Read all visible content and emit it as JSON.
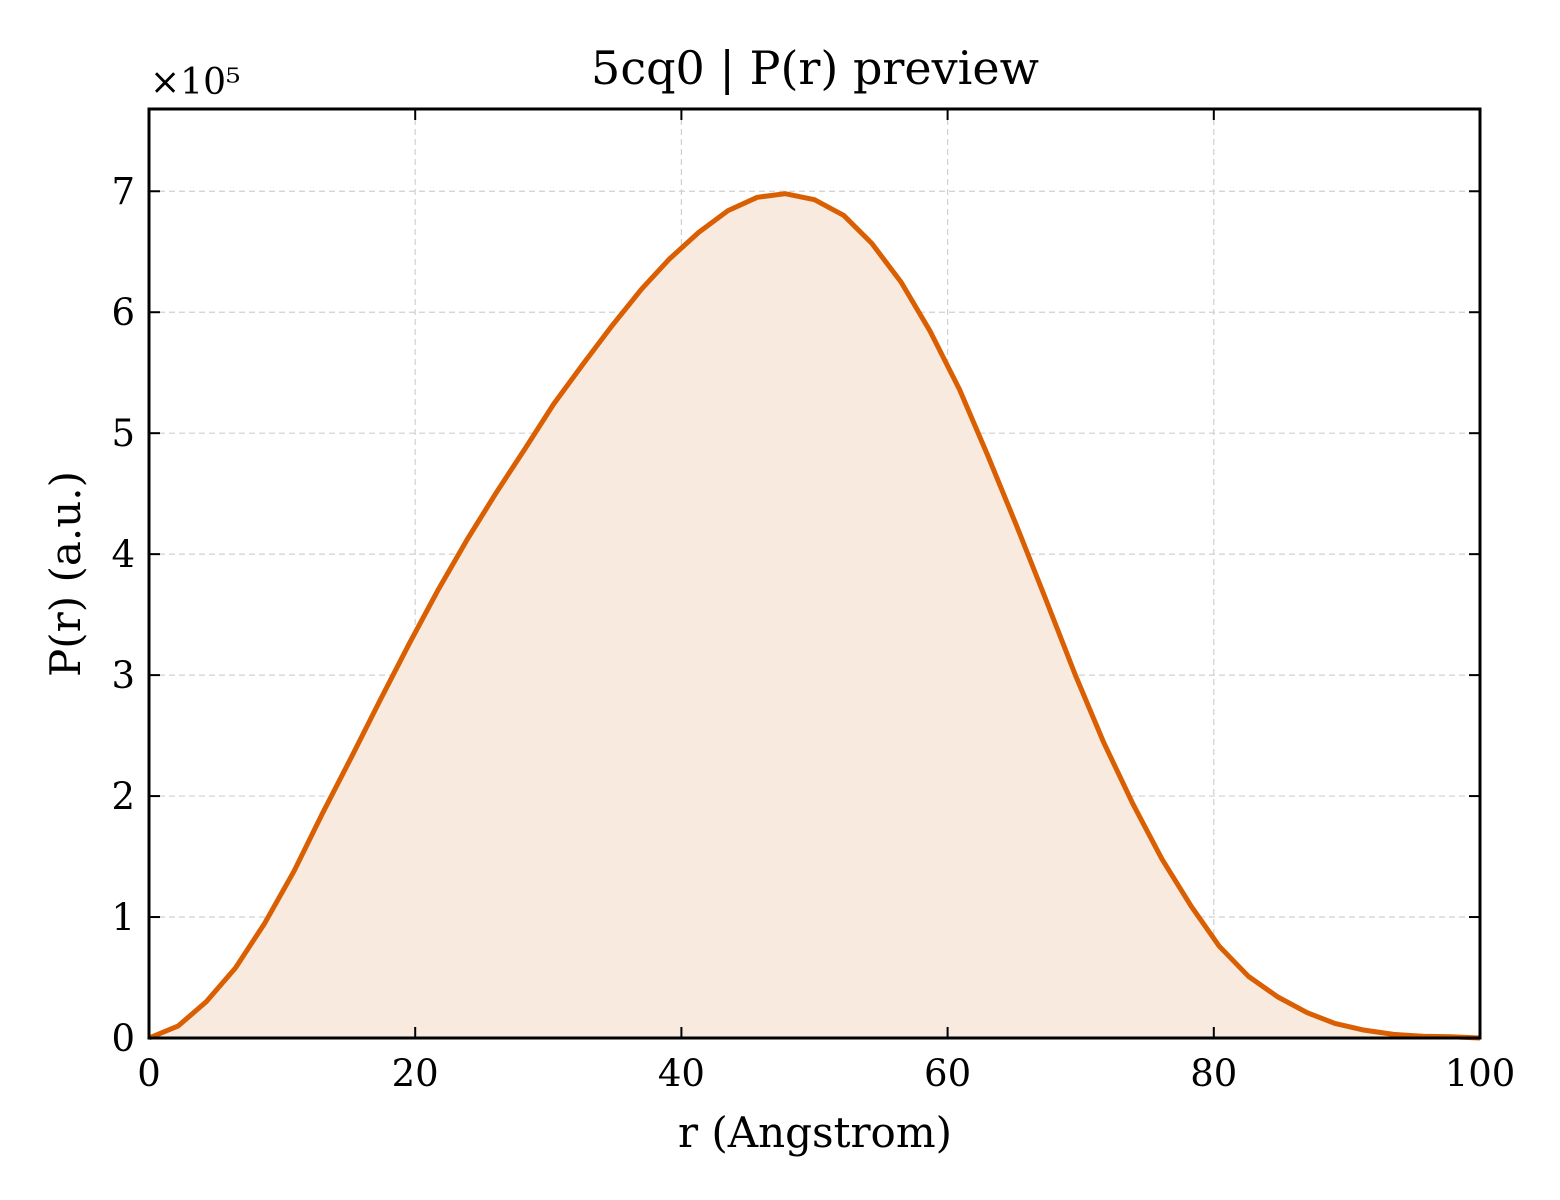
{
  "chart_data": {
    "type": "area",
    "title": "5cq0 | P(r) preview",
    "xlabel": "r (Angstrom)",
    "ylabel": "P(r) (a.u.)",
    "y_offset_label": "×10⁵",
    "y_scale_factor": 100000,
    "xlim": [
      0,
      100
    ],
    "ylim": [
      0,
      768000
    ],
    "x_ticks": [
      0,
      20,
      40,
      60,
      80,
      100
    ],
    "x_tick_labels": [
      "0",
      "20",
      "40",
      "60",
      "80",
      "100"
    ],
    "y_ticks": [
      0,
      100000,
      200000,
      300000,
      400000,
      500000,
      600000,
      700000
    ],
    "y_tick_labels": [
      "0",
      "1",
      "2",
      "3",
      "4",
      "5",
      "6",
      "7"
    ],
    "grid": true,
    "line_color": "#d95f02",
    "fill_color": "#f8eadf",
    "series": [
      {
        "x": [
          0,
          2.2,
          4.3,
          6.5,
          8.7,
          10.9,
          13.0,
          15.2,
          17.4,
          19.6,
          21.7,
          23.9,
          26.1,
          28.3,
          30.4,
          32.6,
          34.8,
          37.0,
          39.1,
          41.3,
          43.5,
          45.7,
          47.8,
          50.0,
          52.2,
          54.3,
          56.5,
          58.7,
          60.9,
          63.0,
          65.2,
          67.4,
          69.6,
          71.7,
          73.9,
          76.1,
          78.3,
          80.4,
          82.6,
          84.8,
          87.0,
          89.1,
          91.3,
          93.5,
          95.7,
          97.8,
          100
        ],
        "values": [
          0,
          10000,
          30000,
          58000,
          95000,
          138000,
          185000,
          232000,
          280000,
          327000,
          370000,
          412000,
          451000,
          488000,
          524000,
          557000,
          589000,
          619000,
          644000,
          666000,
          684000,
          695000,
          698000,
          693000,
          680000,
          657000,
          625000,
          584000,
          536000,
          482000,
          423000,
          362000,
          300000,
          245000,
          194000,
          148000,
          109000,
          76000,
          51000,
          34000,
          21000,
          12000,
          6500,
          3000,
          1500,
          1000,
          0
        ]
      }
    ]
  }
}
